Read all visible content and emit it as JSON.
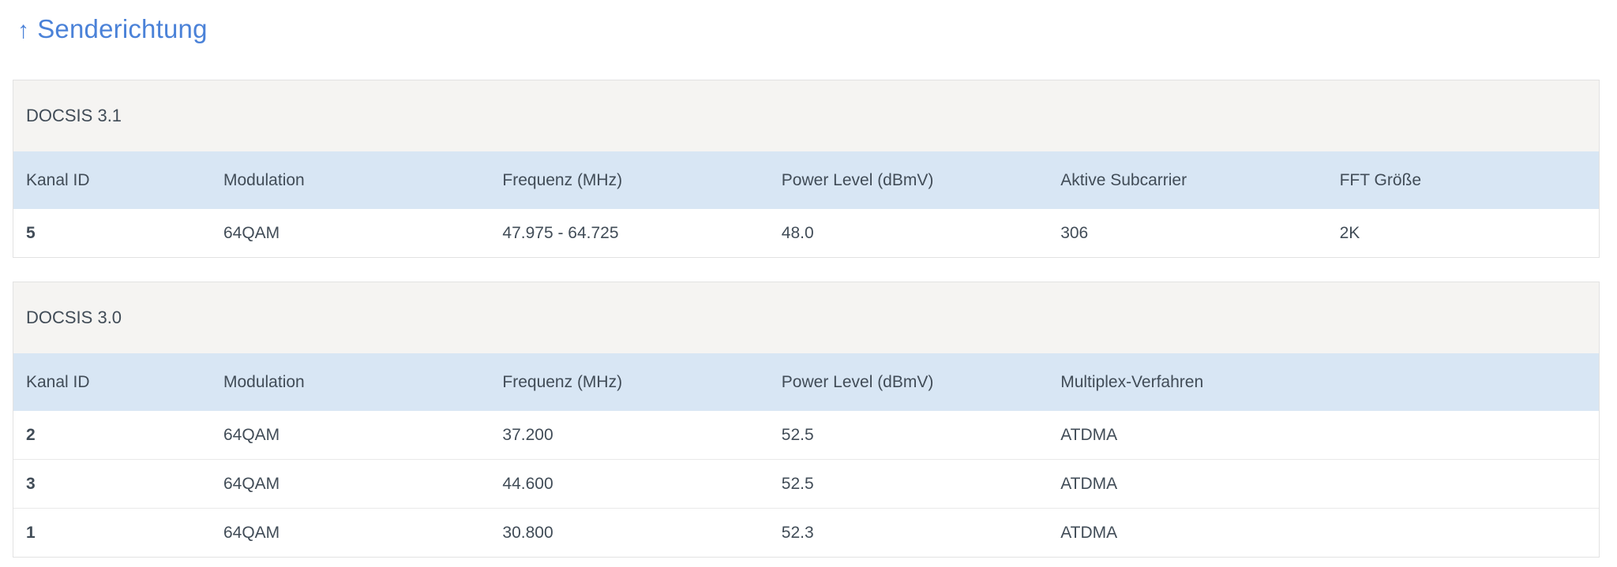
{
  "title": {
    "arrow": "↑",
    "label": "Senderichtung"
  },
  "colors": {
    "accent-blue": "#4b82d8",
    "table-header-bg": "#d8e6f4",
    "section-header-bg": "#f5f4f2",
    "text": "#414c57",
    "border": "#e2e2e2",
    "row-divider": "#e9e9e9"
  },
  "sections": [
    {
      "title": "DOCSIS 3.1",
      "columns": [
        "Kanal ID",
        "Modulation",
        "Frequenz (MHz)",
        "Power Level (dBmV)",
        "Aktive Subcarrier",
        "FFT Größe"
      ],
      "rows": [
        [
          "5",
          "64QAM",
          "47.975 - 64.725",
          "48.0",
          "306",
          "2K"
        ]
      ]
    },
    {
      "title": "DOCSIS 3.0",
      "columns": [
        "Kanal ID",
        "Modulation",
        "Frequenz (MHz)",
        "Power Level (dBmV)",
        "Multiplex-Verfahren"
      ],
      "rows": [
        [
          "2",
          "64QAM",
          "37.200",
          "52.5",
          "ATDMA"
        ],
        [
          "3",
          "64QAM",
          "44.600",
          "52.5",
          "ATDMA"
        ],
        [
          "1",
          "64QAM",
          "30.800",
          "52.3",
          "ATDMA"
        ]
      ]
    }
  ]
}
